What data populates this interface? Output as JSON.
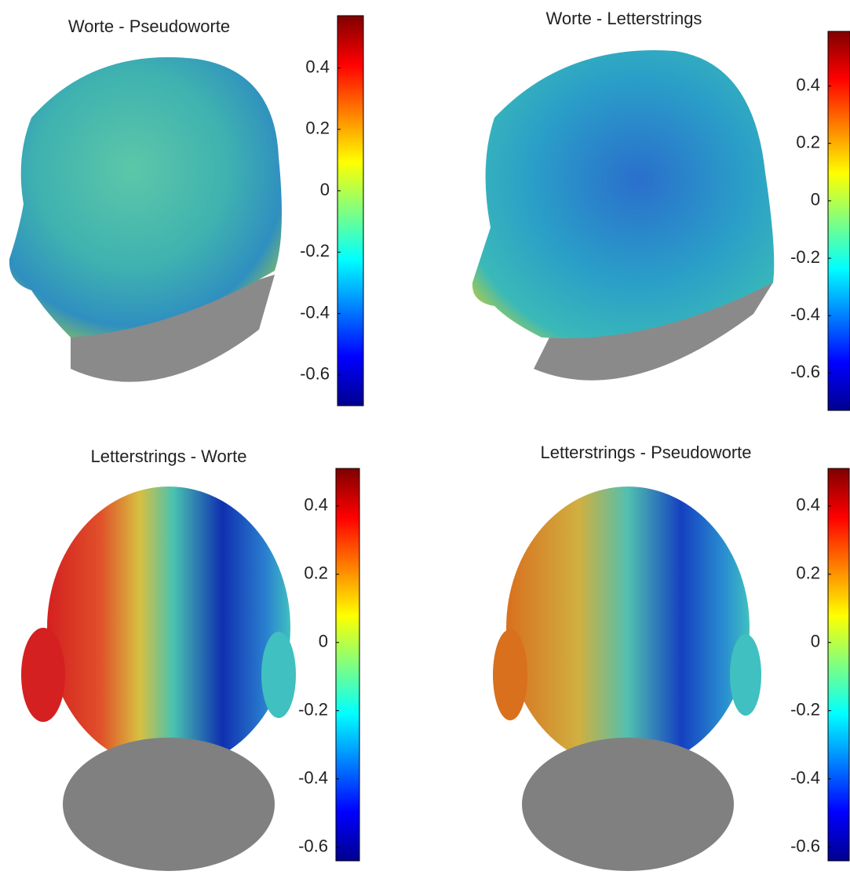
{
  "chart_data": [
    {
      "type": "surface",
      "title": "Worte - Pseudoworte",
      "colormap": "jet",
      "ylim": [
        -0.7,
        0.57
      ],
      "yticks": [
        0.4,
        0.2,
        0,
        -0.2,
        -0.4,
        -0.6
      ]
    },
    {
      "type": "surface",
      "title": "Worte - Letterstrings",
      "colormap": "jet",
      "ylim": [
        -0.73,
        0.59
      ],
      "yticks": [
        0.4,
        0.2,
        0,
        -0.2,
        -0.4,
        -0.6
      ]
    },
    {
      "type": "surface",
      "title": "Letterstrings - Worte",
      "colormap": "jet",
      "ylim": [
        -0.64,
        0.51
      ],
      "yticks": [
        0.4,
        0.2,
        0,
        -0.2,
        -0.4,
        -0.6
      ]
    },
    {
      "type": "surface",
      "title": "Letterstrings - Pseudoworte",
      "colormap": "jet",
      "ylim": [
        -0.64,
        0.51
      ],
      "yticks": [
        0.4,
        0.2,
        0,
        -0.2,
        -0.4,
        -0.6
      ]
    }
  ]
}
